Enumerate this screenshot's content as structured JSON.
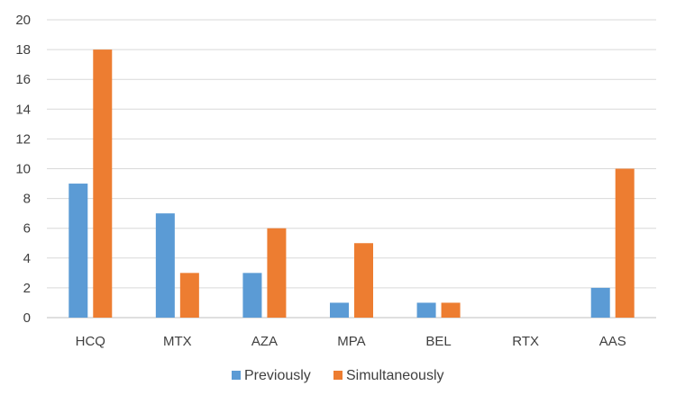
{
  "chart_data": {
    "type": "bar",
    "categories": [
      "HCQ",
      "MTX",
      "AZA",
      "MPA",
      "BEL",
      "RTX",
      "AAS"
    ],
    "series": [
      {
        "name": "Previously",
        "values": [
          9,
          7,
          3,
          1,
          1,
          0,
          2
        ],
        "color": "#5B9BD5"
      },
      {
        "name": "Simultaneously",
        "values": [
          18,
          3,
          6,
          5,
          1,
          0,
          10
        ],
        "color": "#ED7D31"
      }
    ],
    "ylim": [
      0,
      20
    ],
    "yticks": [
      0,
      2,
      4,
      6,
      8,
      10,
      12,
      14,
      16,
      18,
      20
    ],
    "grid": true,
    "legend": "bottom"
  }
}
